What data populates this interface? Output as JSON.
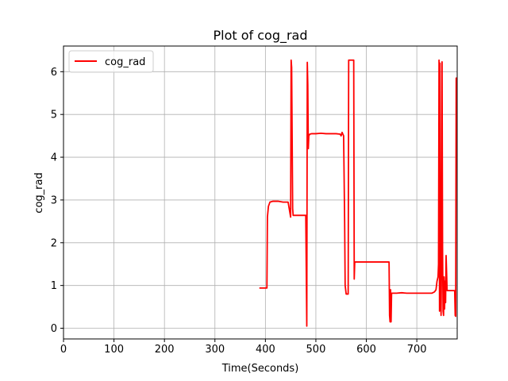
{
  "chart_data": {
    "type": "line",
    "title": "Plot of cog_rad",
    "xlabel": "Time(Seconds)",
    "ylabel": "cog_rad",
    "xlim": [
      0,
      780
    ],
    "ylim": [
      -0.25,
      6.6
    ],
    "xticks": [
      0,
      100,
      200,
      300,
      400,
      500,
      600,
      700
    ],
    "yticks": [
      0,
      1,
      2,
      3,
      4,
      5,
      6
    ],
    "grid": true,
    "legend_position": "top-left",
    "series": [
      {
        "name": "cog_rad",
        "color": "#ff0000",
        "x": [
          388,
          400,
          403,
          404,
          406,
          409,
          415,
          425,
          435,
          445,
          450,
          451,
          452,
          454,
          455,
          456,
          460,
          470,
          480,
          482,
          483,
          484,
          485,
          486,
          488,
          492,
          500,
          510,
          520,
          530,
          540,
          548,
          550,
          552,
          555,
          557,
          558,
          560,
          562,
          564,
          565,
          566,
          570,
          574,
          575,
          576,
          577,
          580,
          590,
          600,
          610,
          620,
          630,
          640,
          645,
          646,
          647,
          648,
          649,
          650,
          652,
          660,
          670,
          680,
          690,
          700,
          710,
          720,
          730,
          735,
          738,
          740,
          742,
          743,
          744,
          745,
          746,
          747,
          748,
          749,
          750,
          751,
          752,
          753,
          754,
          755,
          756,
          757,
          758,
          759,
          760,
          762,
          765,
          770,
          775,
          776,
          777,
          778,
          779,
          780
        ],
        "y": [
          0.94,
          0.94,
          0.94,
          2.6,
          2.85,
          2.95,
          2.97,
          2.97,
          2.95,
          2.95,
          2.6,
          6.27,
          6.1,
          2.8,
          2.64,
          2.64,
          2.64,
          2.64,
          2.64,
          0.05,
          6.22,
          5.7,
          4.2,
          4.5,
          4.54,
          4.55,
          4.55,
          4.56,
          4.55,
          4.55,
          4.55,
          4.54,
          4.5,
          4.58,
          4.5,
          2.5,
          1.0,
          0.8,
          0.8,
          0.8,
          6.27,
          6.27,
          6.27,
          6.27,
          6.27,
          1.15,
          1.55,
          1.55,
          1.55,
          1.55,
          1.55,
          1.55,
          1.55,
          1.55,
          1.55,
          0.3,
          0.15,
          0.9,
          0.15,
          0.82,
          0.82,
          0.82,
          0.83,
          0.82,
          0.82,
          0.82,
          0.82,
          0.82,
          0.82,
          0.85,
          0.9,
          1.1,
          1.2,
          1.5,
          6.27,
          0.4,
          6.2,
          1.5,
          0.3,
          1.6,
          6.23,
          1.9,
          0.4,
          0.3,
          1.2,
          0.45,
          1.1,
          0.6,
          1.7,
          1.3,
          0.88,
          0.88,
          0.88,
          0.88,
          0.88,
          0.3,
          0.28,
          5.85,
          5.85,
          5.85
        ]
      }
    ]
  }
}
